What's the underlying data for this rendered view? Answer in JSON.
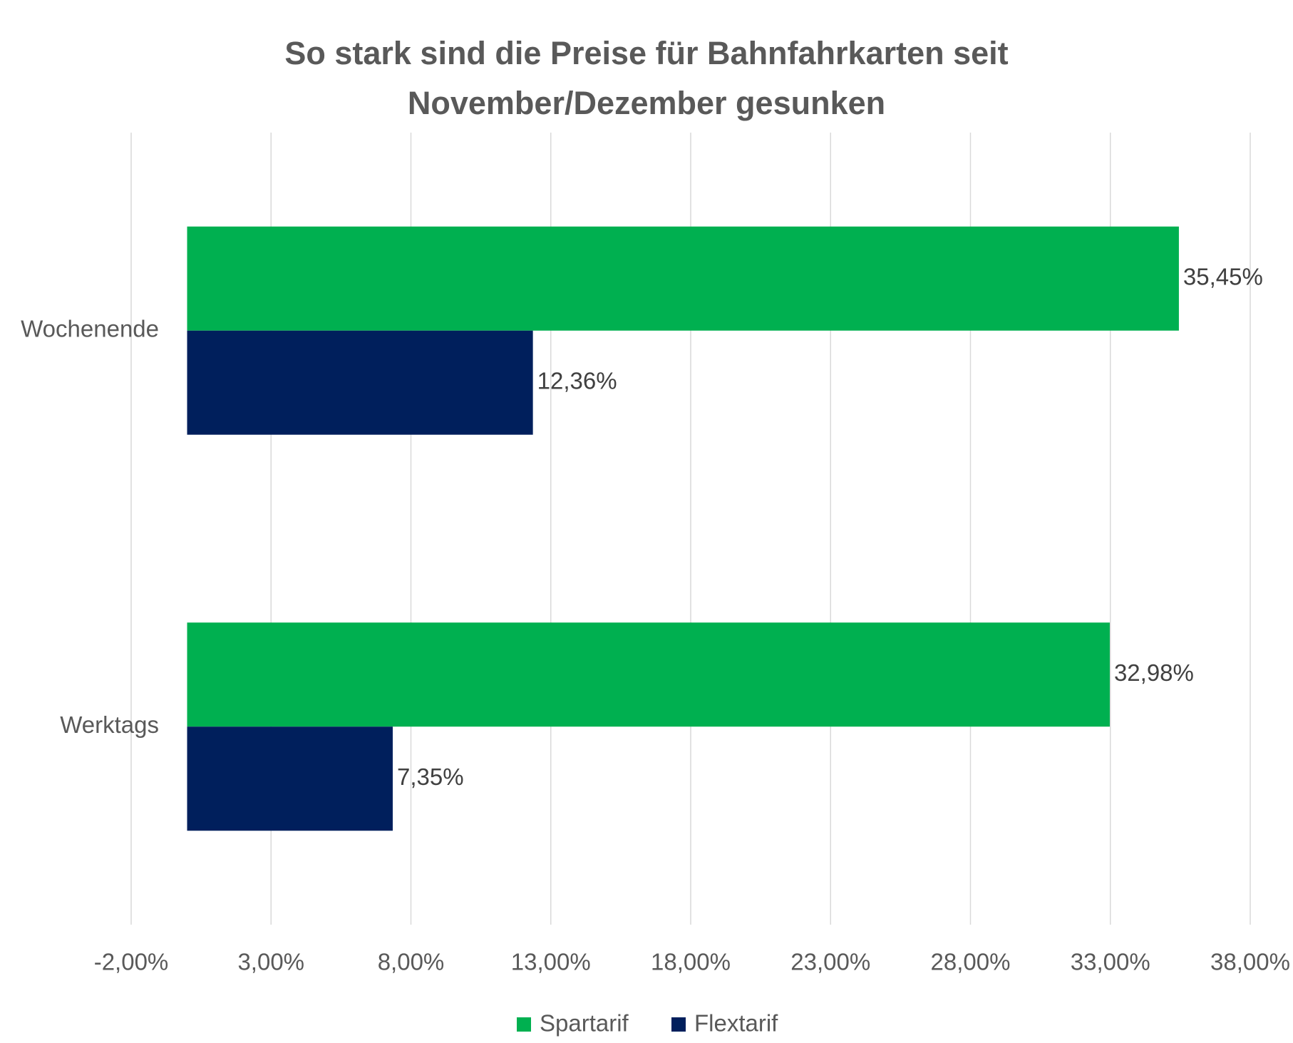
{
  "chart_data": {
    "type": "hbar",
    "title": "So stark sind die Preise für Bahnfahrkarten seit November/Dezember gesunken",
    "categories": [
      "Wochenende",
      "Werktags"
    ],
    "series": [
      {
        "name": "Spartarif",
        "color": "#00b050",
        "values": [
          35.45,
          32.98
        ],
        "value_labels": [
          "35,45%",
          "32,98%"
        ]
      },
      {
        "name": "Flextarif",
        "color": "#001f5c",
        "values": [
          12.36,
          7.35
        ],
        "value_labels": [
          "12,36%",
          "7,35%"
        ]
      }
    ],
    "xlim": [
      -2,
      38
    ],
    "xticks": [
      {
        "value": -2,
        "label": "-2,00%"
      },
      {
        "value": 3,
        "label": "3,00%"
      },
      {
        "value": 8,
        "label": "8,00%"
      },
      {
        "value": 13,
        "label": "13,00%"
      },
      {
        "value": 18,
        "label": "18,00%"
      },
      {
        "value": 23,
        "label": "23,00%"
      },
      {
        "value": 28,
        "label": "28,00%"
      },
      {
        "value": 33,
        "label": "33,00%"
      },
      {
        "value": 38,
        "label": "38,00%"
      }
    ],
    "grid": true,
    "legend": "bottom"
  }
}
